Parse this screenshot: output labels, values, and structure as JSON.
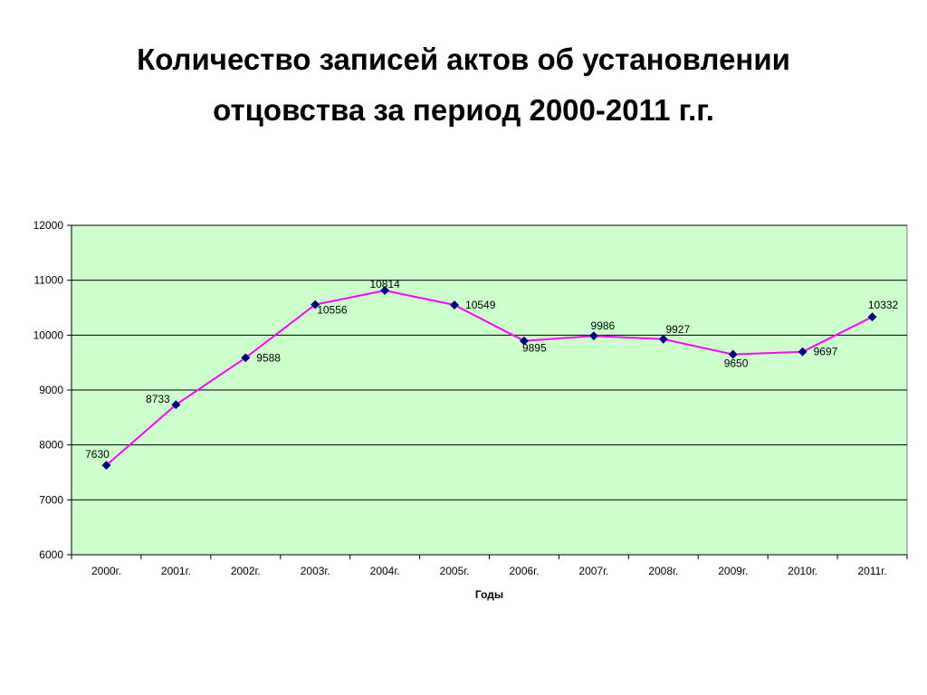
{
  "title": {
    "line1": "Количество записей актов об установлении",
    "line2": "отцовства за период 2000-2011 г.г."
  },
  "chart_data": {
    "type": "line",
    "categories": [
      "2000г.",
      "2001г.",
      "2002г.",
      "2003г.",
      "2004г.",
      "2005г.",
      "2006г.",
      "2007г.",
      "2008г.",
      "2009г.",
      "2010г.",
      "2011г."
    ],
    "series": [
      {
        "values": [
          7630,
          8733,
          9588,
          10556,
          10814,
          10549,
          9895,
          9986,
          9927,
          9650,
          9697,
          10332
        ]
      }
    ],
    "xlabel": "Годы",
    "ylabel": "",
    "ylim": [
      6000,
      12000
    ],
    "yticks": [
      6000,
      7000,
      8000,
      9000,
      10000,
      11000,
      12000
    ],
    "grid": true,
    "legend": "none",
    "colors": {
      "plot_background": "#ccffcc",
      "line": "#ff00ff",
      "marker": "#000080",
      "gridline": "#000000"
    }
  }
}
